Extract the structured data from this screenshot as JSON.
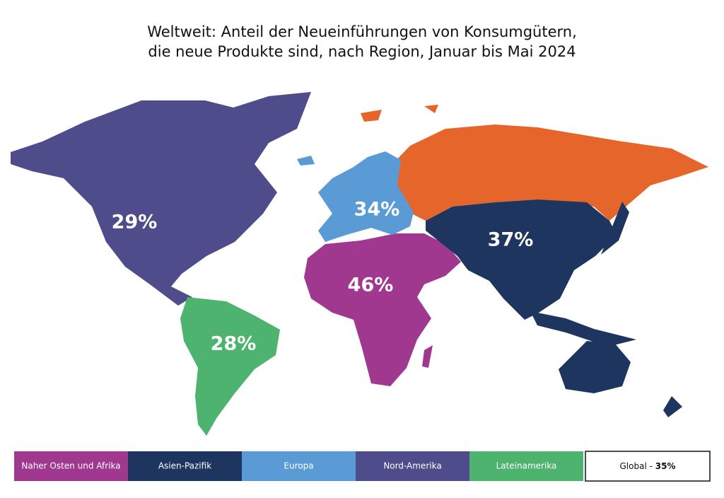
{
  "chart_data": {
    "type": "map",
    "title": [
      "Weltweit: Anteil der Neueinführungen von Konsumgütern,",
      "die neue Produkte sind, nach Region, Januar bis Mai 2024"
    ],
    "regions": [
      {
        "name": "Naher Osten und Afrika",
        "color": "#a0388f",
        "value": 46,
        "value_label": "46%"
      },
      {
        "name": "Asien-Pazifik",
        "color": "#1e3560",
        "value": 37,
        "value_label": "37%"
      },
      {
        "name": "Europa",
        "color": "#5b9bd5",
        "value": 34,
        "value_label": "34%"
      },
      {
        "name": "Nord-Amerika",
        "color": "#4f4c8b",
        "value": 29,
        "value_label": "29%"
      },
      {
        "name": "Lateinamerika",
        "color": "#4db36e",
        "value": 28,
        "value_label": "28%"
      }
    ],
    "global": {
      "label": "Global -",
      "value": 35,
      "value_label": "35%"
    }
  }
}
